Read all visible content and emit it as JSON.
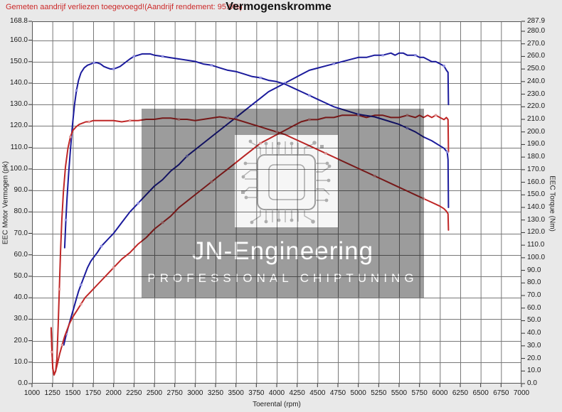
{
  "header": {
    "notice": "Gemeten aandrijf verliezen toegevoegd!(Aandrijf rendement: 95.0%)",
    "title": "Vermogenskromme"
  },
  "axes": {
    "x_title": "Toerental (rpm)",
    "left_title": "EEC Motor Vermogen (pk)",
    "right_title": "EEC Torque (Nm)",
    "x_min": 1000,
    "x_max": 7000,
    "x_step": 250,
    "left_max": 168.8,
    "right_max": 287.9,
    "x_ticks": [
      "1000",
      "1250",
      "1500",
      "1750",
      "2000",
      "2250",
      "2500",
      "2750",
      "3000",
      "3250",
      "3500",
      "3750",
      "4000",
      "4250",
      "4500",
      "4750",
      "5000",
      "5250",
      "5500",
      "5750",
      "6000",
      "6250",
      "6500",
      "6750",
      "7000"
    ],
    "left_ticks": [
      "168.8",
      "160.0",
      "150.0",
      "140.0",
      "130.0",
      "120.0",
      "110.0",
      "100.0",
      "90.0",
      "80.0",
      "70.0",
      "60.0",
      "50.0",
      "40.0",
      "30.0",
      "20.0",
      "10.0",
      "0.0"
    ],
    "right_ticks": [
      "287.9",
      "280.0",
      "270.0",
      "260.0",
      "250.0",
      "240.0",
      "230.0",
      "220.0",
      "210.0",
      "200.0",
      "190.0",
      "180.0",
      "170.0",
      "160.0",
      "150.0",
      "140.0",
      "130.0",
      "120.0",
      "110.0",
      "100.0",
      "90.0",
      "80.0",
      "70.0",
      "60.0",
      "50.0",
      "40.0",
      "30.0",
      "20.0",
      "10.0",
      "0.0"
    ],
    "grid": "on",
    "legend": "none"
  },
  "watermark": {
    "title": "JN-Engineering",
    "subtitle": "Professional Chiptuning"
  },
  "colors": {
    "blue_line": "#1b1b9c",
    "blue_marker": "#9090e0",
    "red_line": "#bf2626",
    "red_marker": "#e09595",
    "grid": "#787878",
    "border": "#555555",
    "notice": "#cc2929"
  },
  "chart_data": {
    "type": "line",
    "x_unit": "rpm",
    "xlim": [
      1000,
      7000
    ],
    "left_ylim": [
      0,
      168.8
    ],
    "right_ylim": [
      0,
      287.9
    ],
    "title": "Vermogenskromme",
    "series": [
      {
        "name": "power-blue-pk",
        "axis": "left",
        "color_key": "blue_line",
        "marker_key": "blue_marker",
        "points": [
          [
            1390,
            18
          ],
          [
            1420,
            23
          ],
          [
            1450,
            27
          ],
          [
            1480,
            31
          ],
          [
            1510,
            35
          ],
          [
            1540,
            39
          ],
          [
            1570,
            43
          ],
          [
            1600,
            46
          ],
          [
            1640,
            50
          ],
          [
            1680,
            54
          ],
          [
            1720,
            57
          ],
          [
            1760,
            59
          ],
          [
            1800,
            61
          ],
          [
            1850,
            64
          ],
          [
            1900,
            66
          ],
          [
            1950,
            68
          ],
          [
            2000,
            70
          ],
          [
            2100,
            75
          ],
          [
            2200,
            80
          ],
          [
            2300,
            84
          ],
          [
            2400,
            88
          ],
          [
            2500,
            92
          ],
          [
            2600,
            95
          ],
          [
            2700,
            99
          ],
          [
            2800,
            102
          ],
          [
            2900,
            106
          ],
          [
            3000,
            109
          ],
          [
            3100,
            112
          ],
          [
            3200,
            115
          ],
          [
            3300,
            118
          ],
          [
            3400,
            121
          ],
          [
            3500,
            124
          ],
          [
            3600,
            127
          ],
          [
            3700,
            130
          ],
          [
            3800,
            133
          ],
          [
            3900,
            136
          ],
          [
            4000,
            138
          ],
          [
            4100,
            140
          ],
          [
            4200,
            142
          ],
          [
            4300,
            144
          ],
          [
            4400,
            146
          ],
          [
            4500,
            147
          ],
          [
            4600,
            148
          ],
          [
            4700,
            149
          ],
          [
            4800,
            150
          ],
          [
            4900,
            151
          ],
          [
            5000,
            152
          ],
          [
            5100,
            152
          ],
          [
            5200,
            153
          ],
          [
            5300,
            153
          ],
          [
            5400,
            154
          ],
          [
            5450,
            153
          ],
          [
            5500,
            154
          ],
          [
            5550,
            154
          ],
          [
            5600,
            153
          ],
          [
            5700,
            153
          ],
          [
            5750,
            152
          ],
          [
            5800,
            152
          ],
          [
            5900,
            150
          ],
          [
            5950,
            150
          ],
          [
            6000,
            149
          ],
          [
            6050,
            148
          ],
          [
            6080,
            146
          ],
          [
            6100,
            145
          ],
          [
            6105,
            130
          ]
        ]
      },
      {
        "name": "power-red-pk",
        "axis": "left",
        "color_key": "red_line",
        "marker_key": "red_marker",
        "points": [
          [
            1235,
            26
          ],
          [
            1245,
            15
          ],
          [
            1255,
            7
          ],
          [
            1270,
            4
          ],
          [
            1290,
            6
          ],
          [
            1310,
            9
          ],
          [
            1340,
            14
          ],
          [
            1370,
            18
          ],
          [
            1400,
            22
          ],
          [
            1430,
            25
          ],
          [
            1460,
            28
          ],
          [
            1500,
            31
          ],
          [
            1550,
            34
          ],
          [
            1600,
            37
          ],
          [
            1650,
            40
          ],
          [
            1700,
            42
          ],
          [
            1750,
            44
          ],
          [
            1800,
            46
          ],
          [
            1900,
            50
          ],
          [
            2000,
            54
          ],
          [
            2100,
            58
          ],
          [
            2200,
            61
          ],
          [
            2300,
            65
          ],
          [
            2400,
            68
          ],
          [
            2500,
            72
          ],
          [
            2600,
            75
          ],
          [
            2700,
            78
          ],
          [
            2800,
            82
          ],
          [
            2900,
            85
          ],
          [
            3000,
            88
          ],
          [
            3100,
            91
          ],
          [
            3200,
            94
          ],
          [
            3300,
            97
          ],
          [
            3400,
            100
          ],
          [
            3500,
            103
          ],
          [
            3600,
            106
          ],
          [
            3700,
            109
          ],
          [
            3800,
            112
          ],
          [
            3900,
            114
          ],
          [
            4000,
            116
          ],
          [
            4100,
            118
          ],
          [
            4200,
            120
          ],
          [
            4300,
            122
          ],
          [
            4400,
            123
          ],
          [
            4500,
            123
          ],
          [
            4600,
            124
          ],
          [
            4700,
            124
          ],
          [
            4800,
            125
          ],
          [
            4900,
            125
          ],
          [
            5000,
            125
          ],
          [
            5100,
            124
          ],
          [
            5200,
            125
          ],
          [
            5300,
            125
          ],
          [
            5400,
            124
          ],
          [
            5500,
            124
          ],
          [
            5600,
            125
          ],
          [
            5700,
            124
          ],
          [
            5750,
            125
          ],
          [
            5800,
            124
          ],
          [
            5850,
            125
          ],
          [
            5900,
            124
          ],
          [
            5950,
            125
          ],
          [
            6000,
            124
          ],
          [
            6050,
            123
          ],
          [
            6080,
            124
          ],
          [
            6100,
            123
          ],
          [
            6105,
            108
          ]
        ]
      },
      {
        "name": "torque-blue-nm",
        "axis": "right",
        "color_key": "blue_line",
        "marker_key": "blue_marker",
        "points": [
          [
            1400,
            108
          ],
          [
            1415,
            130
          ],
          [
            1430,
            148
          ],
          [
            1450,
            168
          ],
          [
            1470,
            185
          ],
          [
            1495,
            205
          ],
          [
            1520,
            221
          ],
          [
            1545,
            233
          ],
          [
            1570,
            241
          ],
          [
            1600,
            247
          ],
          [
            1640,
            251
          ],
          [
            1680,
            253
          ],
          [
            1720,
            254
          ],
          [
            1760,
            255
          ],
          [
            1800,
            255
          ],
          [
            1840,
            254
          ],
          [
            1880,
            252
          ],
          [
            1920,
            251
          ],
          [
            1960,
            250
          ],
          [
            2000,
            250
          ],
          [
            2040,
            251
          ],
          [
            2080,
            252
          ],
          [
            2120,
            254
          ],
          [
            2160,
            256
          ],
          [
            2200,
            258
          ],
          [
            2250,
            260
          ],
          [
            2300,
            261
          ],
          [
            2350,
            262
          ],
          [
            2400,
            262
          ],
          [
            2450,
            262
          ],
          [
            2500,
            261
          ],
          [
            2600,
            260
          ],
          [
            2700,
            259
          ],
          [
            2800,
            258
          ],
          [
            2900,
            257
          ],
          [
            3000,
            256
          ],
          [
            3100,
            254
          ],
          [
            3200,
            253
          ],
          [
            3300,
            251
          ],
          [
            3400,
            249
          ],
          [
            3500,
            248
          ],
          [
            3600,
            246
          ],
          [
            3700,
            244
          ],
          [
            3800,
            243
          ],
          [
            3900,
            241
          ],
          [
            4000,
            240
          ],
          [
            4100,
            238
          ],
          [
            4200,
            235
          ],
          [
            4300,
            232
          ],
          [
            4400,
            229
          ],
          [
            4500,
            226
          ],
          [
            4600,
            223
          ],
          [
            4700,
            220
          ],
          [
            4800,
            218
          ],
          [
            4900,
            216
          ],
          [
            5000,
            214
          ],
          [
            5100,
            213
          ],
          [
            5200,
            212
          ],
          [
            5300,
            210
          ],
          [
            5400,
            208
          ],
          [
            5500,
            206
          ],
          [
            5600,
            203
          ],
          [
            5700,
            200
          ],
          [
            5800,
            196
          ],
          [
            5900,
            193
          ],
          [
            6000,
            189
          ],
          [
            6050,
            187
          ],
          [
            6090,
            184
          ],
          [
            6100,
            178
          ],
          [
            6105,
            140
          ]
        ]
      },
      {
        "name": "torque-red-nm",
        "axis": "right",
        "color_key": "red_line",
        "marker_key": "red_marker",
        "points": [
          [
            1235,
            44
          ],
          [
            1245,
            25
          ],
          [
            1255,
            12
          ],
          [
            1270,
            7
          ],
          [
            1290,
            10
          ],
          [
            1305,
            20
          ],
          [
            1320,
            45
          ],
          [
            1335,
            75
          ],
          [
            1350,
            105
          ],
          [
            1365,
            130
          ],
          [
            1385,
            152
          ],
          [
            1410,
            172
          ],
          [
            1440,
            187
          ],
          [
            1470,
            196
          ],
          [
            1500,
            201
          ],
          [
            1540,
            204
          ],
          [
            1580,
            206
          ],
          [
            1620,
            207
          ],
          [
            1660,
            208
          ],
          [
            1700,
            208
          ],
          [
            1750,
            209
          ],
          [
            1800,
            209
          ],
          [
            1900,
            209
          ],
          [
            2000,
            209
          ],
          [
            2100,
            208
          ],
          [
            2200,
            209
          ],
          [
            2300,
            209
          ],
          [
            2400,
            210
          ],
          [
            2500,
            210
          ],
          [
            2600,
            211
          ],
          [
            2700,
            211
          ],
          [
            2800,
            210
          ],
          [
            2900,
            210
          ],
          [
            3000,
            209
          ],
          [
            3100,
            210
          ],
          [
            3200,
            211
          ],
          [
            3300,
            212
          ],
          [
            3400,
            211
          ],
          [
            3500,
            210
          ],
          [
            3600,
            208
          ],
          [
            3700,
            206
          ],
          [
            3800,
            204
          ],
          [
            3900,
            202
          ],
          [
            4000,
            200
          ],
          [
            4100,
            198
          ],
          [
            4200,
            195
          ],
          [
            4300,
            192
          ],
          [
            4400,
            189
          ],
          [
            4500,
            186
          ],
          [
            4600,
            183
          ],
          [
            4700,
            180
          ],
          [
            4800,
            177
          ],
          [
            4900,
            174
          ],
          [
            5000,
            171
          ],
          [
            5100,
            168
          ],
          [
            5200,
            165
          ],
          [
            5300,
            162
          ],
          [
            5400,
            159
          ],
          [
            5500,
            156
          ],
          [
            5600,
            153
          ],
          [
            5700,
            150
          ],
          [
            5800,
            147
          ],
          [
            5900,
            144
          ],
          [
            6000,
            141
          ],
          [
            6050,
            139
          ],
          [
            6080,
            137
          ],
          [
            6100,
            135
          ],
          [
            6105,
            122
          ]
        ]
      }
    ]
  }
}
